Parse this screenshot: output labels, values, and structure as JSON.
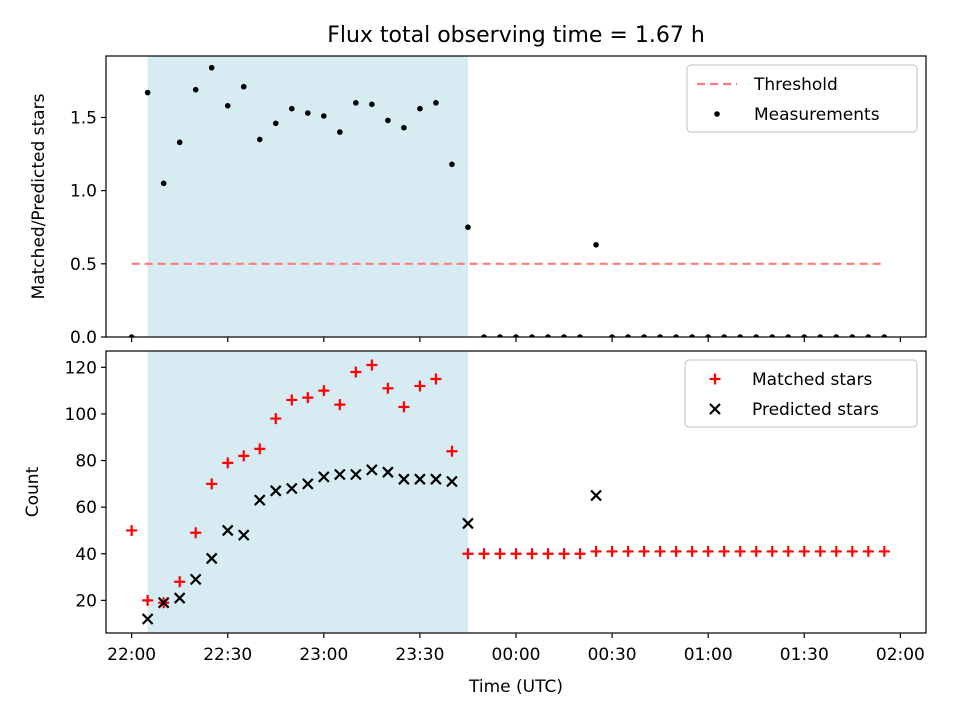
{
  "figure": {
    "title": "Flux total observing time = 1.67 h",
    "xlabel": "Time (UTC)"
  },
  "chart_data": [
    {
      "type": "scatter",
      "panel": "top",
      "ylabel": "Matched/Predicted stars",
      "xlim": [
        "21:52",
        "02:08"
      ],
      "ylim": [
        0,
        1.92
      ],
      "yticks": [
        0.0,
        0.5,
        1.0,
        1.5
      ],
      "ytick_labels": [
        "0.0",
        "0.5",
        "1.0",
        "1.5"
      ],
      "xticks": [
        "22:00",
        "22:30",
        "23:00",
        "23:30",
        "00:00",
        "00:30",
        "01:00",
        "01:30",
        "02:00"
      ],
      "shaded_span": {
        "from": "22:05",
        "to": "23:45",
        "color": "#add8e6"
      },
      "legend_position": "upper right",
      "grid": false,
      "series": [
        {
          "name": "Threshold",
          "style": "dashed-line",
          "color": "#ff7b7b",
          "x": [
            "22:00",
            "01:55"
          ],
          "y": [
            0.5,
            0.5
          ]
        },
        {
          "name": "Measurements",
          "style": "dot",
          "color": "#000000",
          "x": [
            "22:00",
            "22:05",
            "22:10",
            "22:15",
            "22:20",
            "22:25",
            "22:30",
            "22:35",
            "22:40",
            "22:45",
            "22:50",
            "22:55",
            "23:00",
            "23:05",
            "23:10",
            "23:15",
            "23:20",
            "23:25",
            "23:30",
            "23:35",
            "23:40",
            "23:45",
            "23:50",
            "23:55",
            "00:00",
            "00:05",
            "00:10",
            "00:15",
            "00:20",
            "00:25",
            "00:30",
            "00:35",
            "00:40",
            "00:45",
            "00:50",
            "00:55",
            "01:00",
            "01:05",
            "01:10",
            "01:15",
            "01:20",
            "01:25",
            "01:30",
            "01:35",
            "01:40",
            "01:45",
            "01:50",
            "01:55"
          ],
          "y": [
            0,
            1.67,
            1.05,
            1.33,
            1.69,
            1.84,
            1.58,
            1.71,
            1.35,
            1.46,
            1.56,
            1.53,
            1.51,
            1.4,
            1.6,
            1.59,
            1.48,
            1.43,
            1.56,
            1.6,
            1.18,
            0.75,
            0,
            0,
            0,
            0,
            0,
            0,
            0,
            0.63,
            0,
            0,
            0,
            0,
            0,
            0,
            0,
            0,
            0,
            0,
            0,
            0,
            0,
            0,
            0,
            0,
            0,
            0
          ]
        }
      ]
    },
    {
      "type": "scatter",
      "panel": "bottom",
      "ylabel": "Count",
      "xlim": [
        "21:52",
        "02:08"
      ],
      "ylim": [
        6,
        127
      ],
      "yticks": [
        20,
        40,
        60,
        80,
        100,
        120
      ],
      "ytick_labels": [
        "20",
        "40",
        "60",
        "80",
        "100",
        "120"
      ],
      "xticks": [
        "22:00",
        "22:30",
        "23:00",
        "23:30",
        "00:00",
        "00:30",
        "01:00",
        "01:30",
        "02:00"
      ],
      "xtick_labels": [
        "22:00",
        "22:30",
        "23:00",
        "23:30",
        "00:00",
        "00:30",
        "01:00",
        "01:30",
        "02:00"
      ],
      "shaded_span": {
        "from": "22:05",
        "to": "23:45",
        "color": "#add8e6"
      },
      "legend_position": "upper right",
      "grid": false,
      "series": [
        {
          "name": "Matched stars",
          "style": "plus",
          "color": "#ff0000",
          "x": [
            "22:00",
            "22:05",
            "22:10",
            "22:15",
            "22:20",
            "22:25",
            "22:30",
            "22:35",
            "22:40",
            "22:45",
            "22:50",
            "22:55",
            "23:00",
            "23:05",
            "23:10",
            "23:15",
            "23:20",
            "23:25",
            "23:30",
            "23:35",
            "23:40",
            "23:45",
            "23:50",
            "23:55",
            "00:00",
            "00:05",
            "00:10",
            "00:15",
            "00:20",
            "00:25",
            "00:30",
            "00:35",
            "00:40",
            "00:45",
            "00:50",
            "00:55",
            "01:00",
            "01:05",
            "01:10",
            "01:15",
            "01:20",
            "01:25",
            "01:30",
            "01:35",
            "01:40",
            "01:45",
            "01:50",
            "01:55"
          ],
          "y": [
            50,
            20,
            19,
            28,
            49,
            70,
            79,
            82,
            85,
            98,
            106,
            107,
            110,
            104,
            118,
            121,
            111,
            103,
            112,
            115,
            84,
            40,
            40,
            40,
            40,
            40,
            40,
            40,
            40,
            41,
            41,
            41,
            41,
            41,
            41,
            41,
            41,
            41,
            41,
            41,
            41,
            41,
            41,
            41,
            41,
            41,
            41,
            41
          ]
        },
        {
          "name": "Predicted stars",
          "style": "x",
          "color": "#000000",
          "x": [
            "22:05",
            "22:10",
            "22:15",
            "22:20",
            "22:25",
            "22:30",
            "22:35",
            "22:40",
            "22:45",
            "22:50",
            "22:55",
            "23:00",
            "23:05",
            "23:10",
            "23:15",
            "23:20",
            "23:25",
            "23:30",
            "23:35",
            "23:40",
            "23:45",
            "00:25"
          ],
          "y": [
            12,
            19,
            21,
            29,
            38,
            50,
            48,
            63,
            67,
            68,
            70,
            73,
            74,
            74,
            76,
            75,
            72,
            72,
            72,
            71,
            53,
            65
          ]
        }
      ]
    }
  ]
}
